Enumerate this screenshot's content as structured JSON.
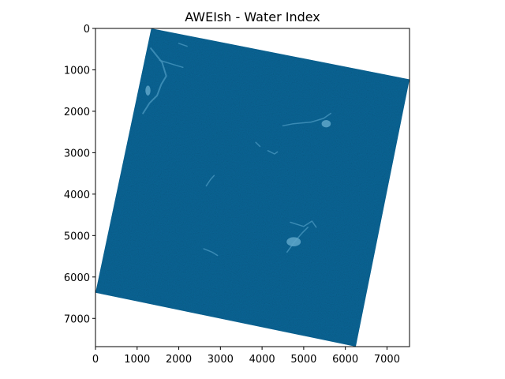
{
  "chart_data": {
    "type": "heatmap",
    "title": "AWEIsh - Water Index",
    "xlabel": "",
    "ylabel": "",
    "xlim": [
      0,
      7541
    ],
    "ylim": [
      7681,
      0
    ],
    "x_ticks": [
      0,
      1000,
      2000,
      3000,
      4000,
      5000,
      6000,
      7000
    ],
    "y_ticks": [
      0,
      1000,
      2000,
      3000,
      4000,
      5000,
      6000,
      7000
    ],
    "grid": false,
    "colormap": "blue",
    "colors": {
      "background_value": "#ffffff",
      "land": "#0d5f94",
      "land_dark": "#0a5384",
      "water": "#3f8fb8",
      "water_light": "#5ea6c9"
    },
    "valid_data_footprint": [
      [
        1340,
        0
      ],
      [
        7541,
        1230
      ],
      [
        6250,
        7681
      ],
      [
        0,
        6380
      ]
    ],
    "water_bodies": [
      {
        "points": [
          [
            1330,
            480
          ],
          [
            1600,
            820
          ],
          [
            1700,
            1150
          ],
          [
            1580,
            1350
          ],
          [
            1480,
            1620
          ],
          [
            1300,
            1800
          ],
          [
            1140,
            2050
          ]
        ]
      },
      {
        "points": [
          [
            1540,
            770
          ],
          [
            1900,
            880
          ],
          [
            2100,
            940
          ]
        ]
      },
      {
        "points": [
          [
            2000,
            360
          ],
          [
            2200,
            430
          ]
        ]
      },
      {
        "points": [
          [
            4680,
            4680
          ],
          [
            5000,
            4780
          ],
          [
            5200,
            4650
          ],
          [
            5300,
            4800
          ]
        ]
      },
      {
        "points": [
          [
            4600,
            5400
          ],
          [
            4780,
            5150
          ],
          [
            4960,
            4940
          ],
          [
            5100,
            4800
          ]
        ]
      },
      {
        "points": [
          [
            4500,
            2350
          ],
          [
            4750,
            2300
          ],
          [
            5180,
            2260
          ],
          [
            5480,
            2170
          ],
          [
            5650,
            2050
          ]
        ]
      },
      {
        "points": [
          [
            2660,
            3800
          ],
          [
            2760,
            3650
          ],
          [
            2850,
            3550
          ]
        ]
      },
      {
        "points": [
          [
            2600,
            5320
          ],
          [
            2800,
            5400
          ],
          [
            2930,
            5480
          ]
        ]
      },
      {
        "points": [
          [
            3850,
            2750
          ],
          [
            3950,
            2850
          ]
        ]
      },
      {
        "points": [
          [
            4140,
            2950
          ],
          [
            4300,
            3030
          ],
          [
            4370,
            2980
          ]
        ]
      }
    ],
    "water_patches": [
      {
        "x": 4760,
        "y": 5150,
        "rx": 170,
        "ry": 110
      },
      {
        "x": 5540,
        "y": 2300,
        "rx": 110,
        "ry": 90
      },
      {
        "x": 1260,
        "y": 1500,
        "rx": 60,
        "ry": 120
      }
    ]
  }
}
